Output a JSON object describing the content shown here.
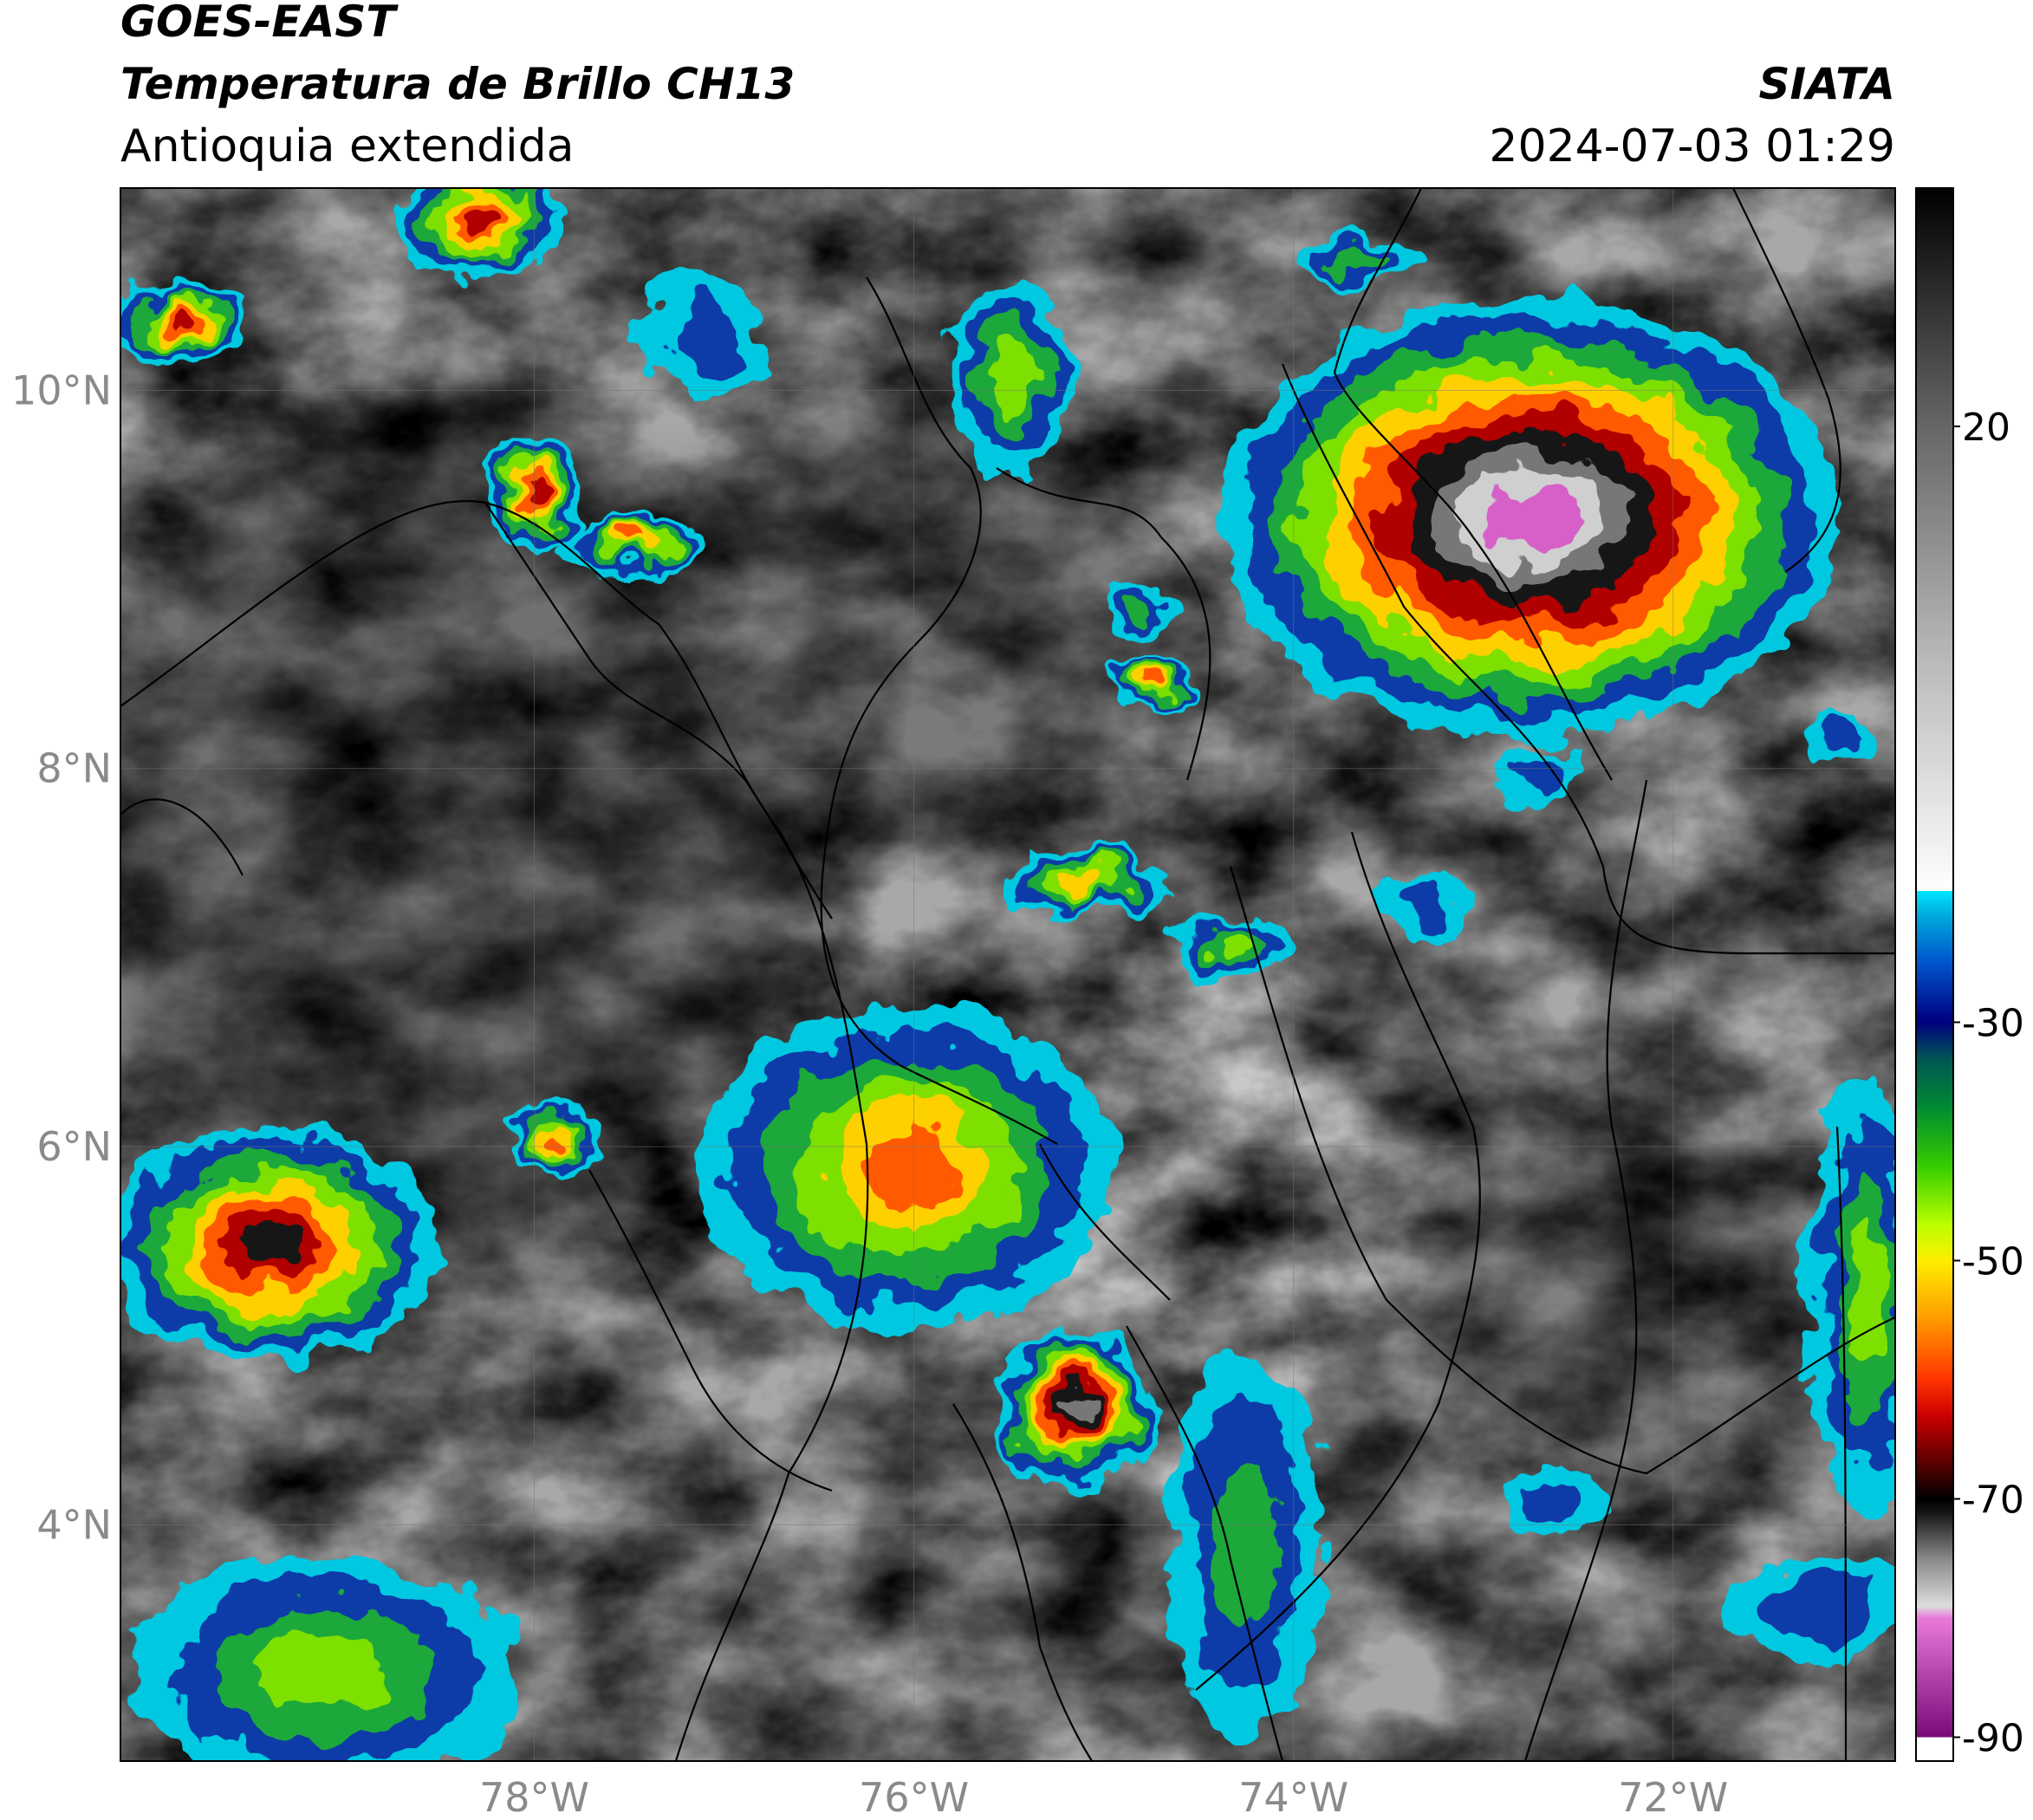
{
  "header": {
    "title": "GOES-EAST",
    "subtitle": "Temperatura de Brillo CH13",
    "region": "Antioquia extendida",
    "source": "SIATA",
    "datetime": "2024-07-03 01:29"
  },
  "map": {
    "xlim": [
      -80.18,
      -70.83
    ],
    "ylim": [
      2.75,
      11.07
    ],
    "xticks": [
      {
        "value": -78,
        "label": "78°W"
      },
      {
        "value": -76,
        "label": "76°W"
      },
      {
        "value": -74,
        "label": "74°W"
      },
      {
        "value": -72,
        "label": "72°W"
      }
    ],
    "yticks": [
      {
        "value": 10,
        "label": "10°N"
      },
      {
        "value": 8,
        "label": "8°N"
      },
      {
        "value": 6,
        "label": "6°N"
      },
      {
        "value": 4,
        "label": "4°N"
      }
    ],
    "grid": true
  },
  "colorbar": {
    "lim": [
      -92,
      40
    ],
    "ticks": [
      20,
      -30,
      -50,
      -70,
      -90
    ],
    "stops": [
      {
        "value": -92,
        "color": "#ffffff"
      },
      {
        "value": -90,
        "color": "#ffffff"
      },
      {
        "value": -90,
        "color": "#7a0a7a"
      },
      {
        "value": -80,
        "color": "#e879d9"
      },
      {
        "value": -79,
        "color": "#dddddd"
      },
      {
        "value": -75,
        "color": "#888888"
      },
      {
        "value": -71,
        "color": "#111111"
      },
      {
        "value": -70,
        "color": "#000000"
      },
      {
        "value": -67,
        "color": "#5a0000"
      },
      {
        "value": -63,
        "color": "#cc0000"
      },
      {
        "value": -60,
        "color": "#ff3300"
      },
      {
        "value": -55,
        "color": "#ff9900"
      },
      {
        "value": -50,
        "color": "#ffee00"
      },
      {
        "value": -47,
        "color": "#bbff00"
      },
      {
        "value": -42,
        "color": "#33cc00"
      },
      {
        "value": -37,
        "color": "#008833"
      },
      {
        "value": -33,
        "color": "#005555"
      },
      {
        "value": -30,
        "color": "#000080"
      },
      {
        "value": -25,
        "color": "#0055cc"
      },
      {
        "value": -21,
        "color": "#00aadd"
      },
      {
        "value": -19,
        "color": "#00e5ff"
      },
      {
        "value": -19,
        "color": "#ffffff"
      },
      {
        "value": 0,
        "color": "#bbbbbb"
      },
      {
        "value": 20,
        "color": "#666666"
      },
      {
        "value": 40,
        "color": "#000000"
      }
    ]
  }
}
